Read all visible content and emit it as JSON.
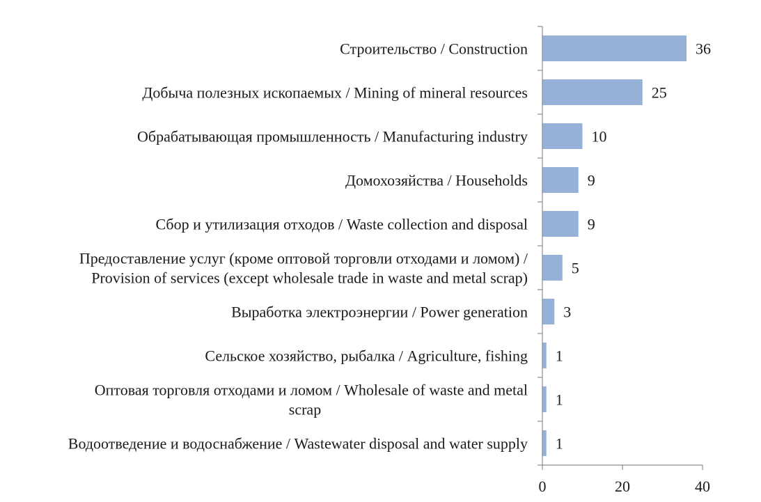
{
  "chart_data": {
    "type": "bar",
    "orientation": "horizontal",
    "categories": [
      [
        "Строительство / Construction"
      ],
      [
        "Добыча полезных ископаемых / Mining of mineral resources"
      ],
      [
        "Обрабатывающая промышленность / Manufacturing industry"
      ],
      [
        "Домохозяйства / Households"
      ],
      [
        "Сбор и утилизация отходов / Waste collection and disposal"
      ],
      [
        "Предоставление услуг (кроме оптовой торговли отходами и ломом) /",
        "Provision of services (except wholesale trade in waste and metal scrap)"
      ],
      [
        "Выработка электроэнергии / Power generation"
      ],
      [
        "Сельское хозяйство, рыбалка / Agriculture, fishing"
      ],
      [
        "Оптовая торговля отходами и ломом / Wholesale of waste and metal",
        "scrap"
      ],
      [
        "Водоотведение и водоснабжение / Wastewater disposal and water supply"
      ]
    ],
    "values": [
      36,
      25,
      10,
      9,
      9,
      5,
      3,
      1,
      1,
      1
    ],
    "data_labels": [
      "36",
      "25",
      "10",
      "9",
      "9",
      "5",
      "3",
      "1",
      "1",
      "1"
    ],
    "xlim": [
      0,
      40
    ],
    "xticks": [
      "0",
      "20",
      "40"
    ],
    "grid": false,
    "bar_color": "#95b1d8"
  }
}
